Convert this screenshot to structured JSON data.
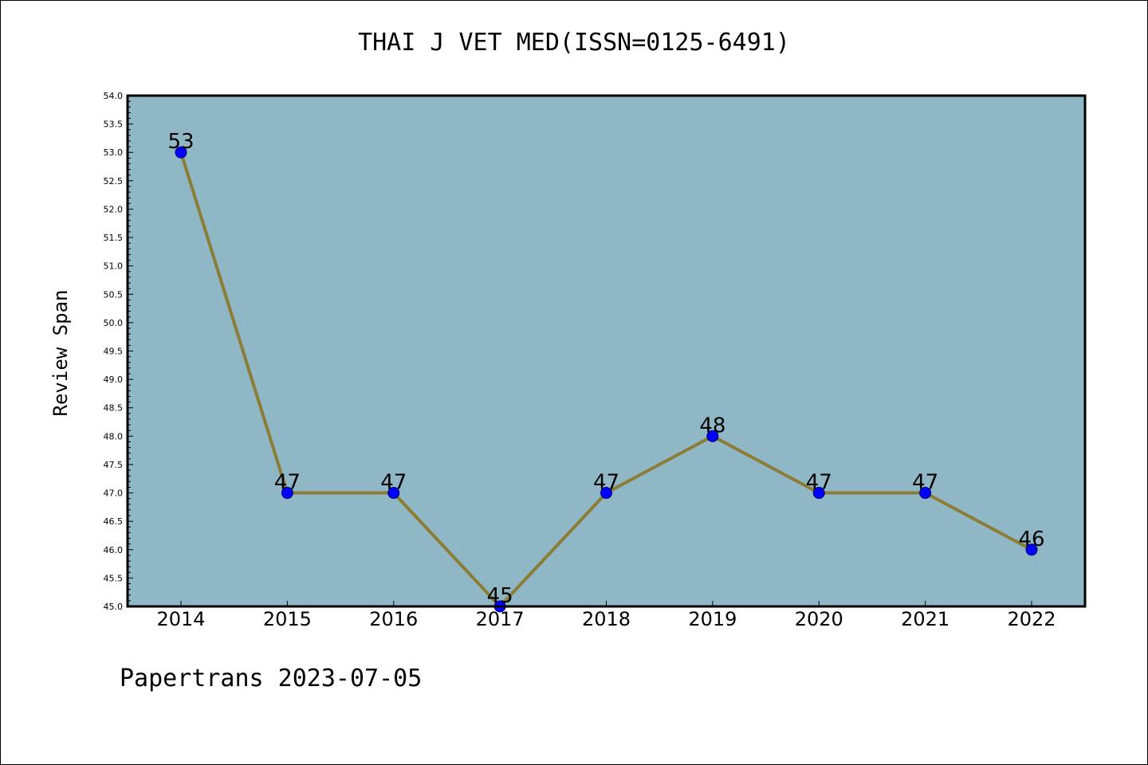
{
  "chart_data": {
    "type": "line",
    "title": "THAI J VET MED(ISSN=0125-6491)",
    "xlabel": "",
    "ylabel": "Review Span",
    "categories": [
      "2014",
      "2015",
      "2016",
      "2017",
      "2018",
      "2019",
      "2020",
      "2021",
      "2022"
    ],
    "series": [
      {
        "values": [
          53,
          47,
          47,
          45,
          47,
          48,
          47,
          47,
          46
        ]
      }
    ],
    "data_labels": [
      "53",
      "47",
      "47",
      "45",
      "47",
      "48",
      "47",
      "47",
      "46"
    ],
    "ylim": [
      45.0,
      54.0
    ],
    "y_ticks": [
      "45.0",
      "45.5",
      "46.0",
      "46.5",
      "47.0",
      "47.5",
      "48.0",
      "48.5",
      "49.0",
      "49.5",
      "50.0",
      "50.5",
      "51.0",
      "51.5",
      "52.0",
      "52.5",
      "53.0",
      "53.5",
      "54.0"
    ],
    "grid": false,
    "legend": "none",
    "colors": {
      "plot_background": "#8fb7c5",
      "line": "#8b7d35",
      "marker": "#0000ff",
      "marker_edge": "#000066",
      "axes": "#000000"
    }
  },
  "footer": "Papertrans 2023-07-05"
}
